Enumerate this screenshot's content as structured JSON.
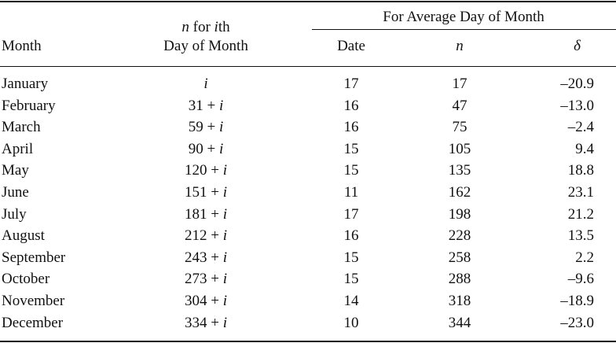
{
  "headers": {
    "month": "Month",
    "n_line1_var": "n",
    "n_line1_mid": " for ",
    "n_line1_i": "i",
    "n_line1_end": "th",
    "n_line2": "Day of Month",
    "group": "For Average Day of Month",
    "date": "Date",
    "n": "n",
    "delta": "δ"
  },
  "rows": [
    {
      "month": "January",
      "n_prefix": "",
      "n_var": "i",
      "date": "17",
      "n": "17",
      "delta": "–20.9"
    },
    {
      "month": "February",
      "n_prefix": "31 + ",
      "n_var": "i",
      "date": "16",
      "n": "47",
      "delta": "–13.0"
    },
    {
      "month": "March",
      "n_prefix": "59 + ",
      "n_var": "i",
      "date": "16",
      "n": "75",
      "delta": "–2.4"
    },
    {
      "month": "April",
      "n_prefix": "90 + ",
      "n_var": "i",
      "date": "15",
      "n": "105",
      "delta": "9.4"
    },
    {
      "month": "May",
      "n_prefix": "120 + ",
      "n_var": "i",
      "date": "15",
      "n": "135",
      "delta": "18.8"
    },
    {
      "month": "June",
      "n_prefix": "151 + ",
      "n_var": "i",
      "date": "11",
      "n": "162",
      "delta": "23.1"
    },
    {
      "month": "July",
      "n_prefix": "181 + ",
      "n_var": "i",
      "date": "17",
      "n": "198",
      "delta": "21.2"
    },
    {
      "month": "August",
      "n_prefix": "212 + ",
      "n_var": "i",
      "date": "16",
      "n": "228",
      "delta": "13.5"
    },
    {
      "month": "September",
      "n_prefix": "243 + ",
      "n_var": "i",
      "date": "15",
      "n": "258",
      "delta": "2.2"
    },
    {
      "month": "October",
      "n_prefix": "273 + ",
      "n_var": "i",
      "date": "15",
      "n": "288",
      "delta": "–9.6"
    },
    {
      "month": "November",
      "n_prefix": "304 + ",
      "n_var": "i",
      "date": "14",
      "n": "318",
      "delta": "–18.9"
    },
    {
      "month": "December",
      "n_prefix": "334 + ",
      "n_var": "i",
      "date": "10",
      "n": "344",
      "delta": "–23.0"
    }
  ]
}
